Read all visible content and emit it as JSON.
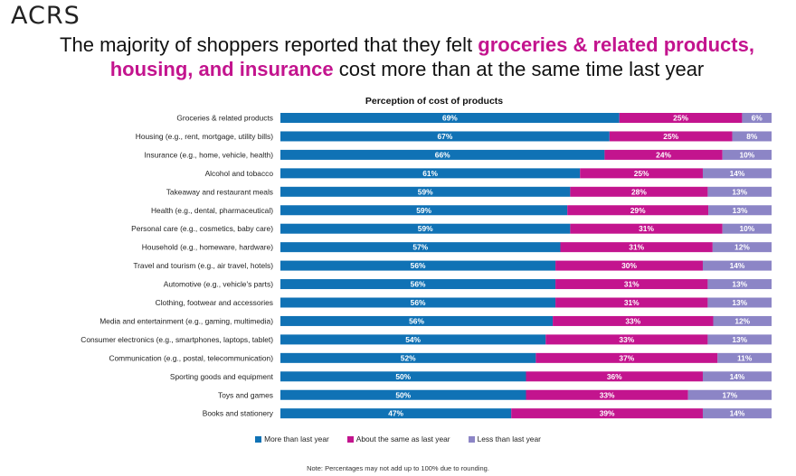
{
  "brand": "ACRS",
  "headline": {
    "line1_prefix": "The majority of shoppers reported that they felt ",
    "line1_highlight": "groceries & related products,",
    "line2_highlight": "housing, and insurance",
    "line2_suffix": " cost more than at the same time last year"
  },
  "colors": {
    "more": "#1072b5",
    "same": "#c3148e",
    "less": "#8c85c6",
    "highlight": "#c3148e"
  },
  "chart_data": {
    "type": "bar",
    "orientation": "horizontal",
    "stacked": true,
    "title": "Perception of cost of products",
    "categories": [
      "Groceries & related products",
      "Housing (e.g., rent, mortgage, utility bills)",
      "Insurance (e.g., home, vehicle, health)",
      "Alcohol and tobacco",
      "Takeaway and restaurant meals",
      "Health (e.g., dental, pharmaceutical)",
      "Personal care (e.g., cosmetics, baby care)",
      "Household (e.g., homeware, hardware)",
      "Travel and tourism (e.g., air travel, hotels)",
      "Automotive (e.g., vehicle's parts)",
      "Clothing, footwear and accessories",
      "Media and entertainment (e.g., gaming, multimedia)",
      "Consumer electronics (e.g., smartphones, laptops, tablet)",
      "Communication (e.g., postal, telecommunication)",
      "Sporting goods and equipment",
      "Toys and games",
      "Books and stationery"
    ],
    "series": [
      {
        "name": "More than last year",
        "color_key": "more",
        "values": [
          69,
          67,
          66,
          61,
          59,
          59,
          59,
          57,
          56,
          56,
          56,
          56,
          54,
          52,
          50,
          50,
          47
        ]
      },
      {
        "name": "About the same as last year",
        "color_key": "same",
        "values": [
          25,
          25,
          24,
          25,
          28,
          29,
          31,
          31,
          30,
          31,
          31,
          33,
          33,
          37,
          36,
          33,
          39
        ]
      },
      {
        "name": "Less than last year",
        "color_key": "less",
        "values": [
          6,
          8,
          10,
          14,
          13,
          13,
          10,
          12,
          14,
          13,
          13,
          12,
          13,
          11,
          14,
          17,
          14
        ]
      }
    ],
    "value_suffix": "%",
    "legend_position": "bottom"
  },
  "note": "Note: Percentages may not add up to 100% due to rounding."
}
